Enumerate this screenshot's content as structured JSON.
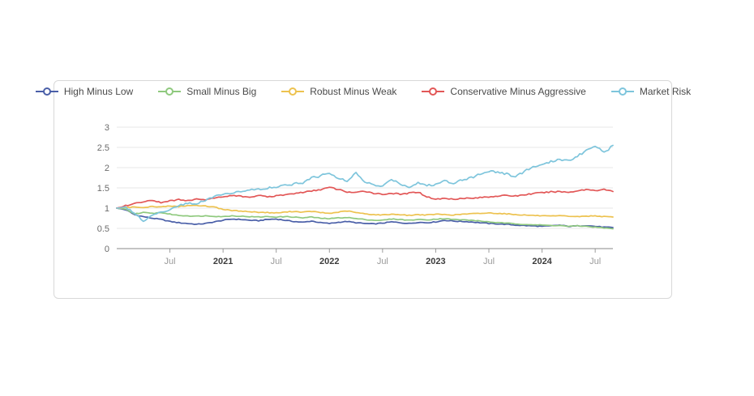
{
  "page": {
    "background": "#ffffff"
  },
  "card": {
    "border_color": "#d9d9d9",
    "background": "#ffffff"
  },
  "chart_data": {
    "type": "line",
    "title": "",
    "xlabel": "",
    "ylabel": "",
    "grid": true,
    "legend_position": "top",
    "ylim": [
      0,
      3
    ],
    "yticks": [
      {
        "v": 0,
        "label": "0"
      },
      {
        "v": 0.5,
        "label": "0.5"
      },
      {
        "v": 1,
        "label": "1"
      },
      {
        "v": 1.5,
        "label": "1.5"
      },
      {
        "v": 2,
        "label": "2"
      },
      {
        "v": 2.5,
        "label": "2.5"
      },
      {
        "v": 3,
        "label": "3"
      }
    ],
    "x_unit": "months since 2020-01",
    "x_month_count": 57,
    "xticks": [
      {
        "m": 6,
        "label": "Jul",
        "year": false
      },
      {
        "m": 12,
        "label": "2021",
        "year": true
      },
      {
        "m": 18,
        "label": "Jul",
        "year": false
      },
      {
        "m": 24,
        "label": "2022",
        "year": true
      },
      {
        "m": 30,
        "label": "Jul",
        "year": false
      },
      {
        "m": 36,
        "label": "2023",
        "year": true
      },
      {
        "m": 42,
        "label": "Jul",
        "year": false
      },
      {
        "m": 48,
        "label": "2024",
        "year": true
      },
      {
        "m": 54,
        "label": "Jul",
        "year": false
      }
    ],
    "series": [
      {
        "name": "High Minus Low",
        "slug": "high-minus-low",
        "color": "#4a5fa8",
        "values": [
          1.0,
          0.96,
          0.84,
          0.79,
          0.75,
          0.72,
          0.67,
          0.64,
          0.62,
          0.6,
          0.62,
          0.66,
          0.7,
          0.73,
          0.72,
          0.7,
          0.69,
          0.72,
          0.73,
          0.7,
          0.67,
          0.65,
          0.68,
          0.64,
          0.62,
          0.65,
          0.67,
          0.64,
          0.62,
          0.61,
          0.63,
          0.66,
          0.64,
          0.62,
          0.65,
          0.64,
          0.66,
          0.7,
          0.68,
          0.67,
          0.66,
          0.64,
          0.62,
          0.61,
          0.6,
          0.58,
          0.57,
          0.56,
          0.55,
          0.56,
          0.58,
          0.55,
          0.56,
          0.57,
          0.55,
          0.53,
          0.52
        ]
      },
      {
        "name": "Small Minus Big",
        "slug": "small-minus-big",
        "color": "#8fc97e",
        "values": [
          1.0,
          0.97,
          0.86,
          0.89,
          0.87,
          0.89,
          0.85,
          0.82,
          0.81,
          0.8,
          0.81,
          0.8,
          0.79,
          0.81,
          0.8,
          0.79,
          0.78,
          0.79,
          0.78,
          0.79,
          0.78,
          0.76,
          0.78,
          0.75,
          0.74,
          0.76,
          0.77,
          0.74,
          0.72,
          0.7,
          0.7,
          0.73,
          0.72,
          0.7,
          0.72,
          0.71,
          0.73,
          0.74,
          0.72,
          0.71,
          0.7,
          0.68,
          0.66,
          0.64,
          0.63,
          0.61,
          0.6,
          0.59,
          0.58,
          0.57,
          0.57,
          0.55,
          0.56,
          0.55,
          0.53,
          0.51,
          0.49
        ]
      },
      {
        "name": "Robust Minus Weak",
        "slug": "robust-minus-weak",
        "color": "#edc24f",
        "values": [
          1.0,
          1.01,
          1.03,
          1.02,
          1.04,
          1.03,
          1.05,
          1.04,
          1.06,
          1.07,
          1.05,
          1.03,
          0.97,
          0.94,
          0.93,
          0.91,
          0.9,
          0.89,
          0.88,
          0.9,
          0.92,
          0.9,
          0.92,
          0.89,
          0.87,
          0.9,
          0.93,
          0.89,
          0.86,
          0.84,
          0.83,
          0.85,
          0.84,
          0.82,
          0.84,
          0.83,
          0.85,
          0.84,
          0.83,
          0.85,
          0.86,
          0.87,
          0.88,
          0.87,
          0.86,
          0.84,
          0.83,
          0.82,
          0.81,
          0.8,
          0.81,
          0.8,
          0.79,
          0.8,
          0.81,
          0.79,
          0.78
        ]
      },
      {
        "name": "Conservative Minus Aggressive",
        "slug": "conservative-minus-aggressive",
        "color": "#e25757",
        "values": [
          1.0,
          1.06,
          1.12,
          1.16,
          1.18,
          1.14,
          1.18,
          1.21,
          1.19,
          1.22,
          1.21,
          1.25,
          1.28,
          1.32,
          1.29,
          1.27,
          1.31,
          1.28,
          1.3,
          1.33,
          1.36,
          1.39,
          1.42,
          1.46,
          1.51,
          1.46,
          1.4,
          1.38,
          1.42,
          1.37,
          1.34,
          1.37,
          1.34,
          1.37,
          1.4,
          1.28,
          1.22,
          1.24,
          1.22,
          1.25,
          1.24,
          1.26,
          1.28,
          1.3,
          1.31,
          1.3,
          1.33,
          1.36,
          1.38,
          1.4,
          1.41,
          1.39,
          1.43,
          1.46,
          1.44,
          1.46,
          1.41
        ]
      },
      {
        "name": "Market Risk",
        "slug": "market-risk",
        "color": "#7ec5dc",
        "values": [
          1.0,
          1.02,
          0.88,
          0.68,
          0.82,
          0.9,
          0.96,
          1.06,
          1.12,
          1.1,
          1.2,
          1.28,
          1.34,
          1.38,
          1.42,
          1.44,
          1.47,
          1.5,
          1.53,
          1.56,
          1.6,
          1.63,
          1.74,
          1.8,
          1.88,
          1.74,
          1.66,
          1.86,
          1.65,
          1.57,
          1.53,
          1.72,
          1.6,
          1.52,
          1.63,
          1.56,
          1.58,
          1.68,
          1.62,
          1.71,
          1.75,
          1.84,
          1.92,
          1.89,
          1.84,
          1.78,
          1.91,
          2.02,
          2.06,
          2.14,
          2.22,
          2.16,
          2.3,
          2.42,
          2.56,
          2.38,
          2.55
        ]
      }
    ]
  }
}
